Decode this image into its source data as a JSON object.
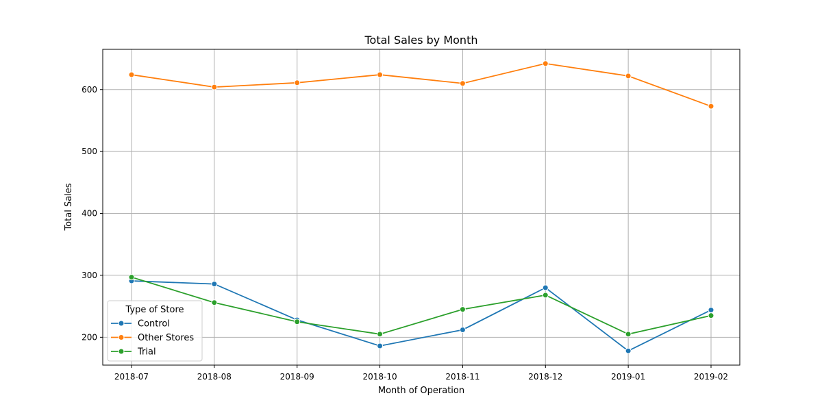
{
  "chart_data": {
    "type": "line",
    "title": "Total Sales by Month",
    "xlabel": "Month of Operation",
    "ylabel": "Total Sales",
    "categories": [
      "2018-07",
      "2018-08",
      "2018-09",
      "2018-10",
      "2018-11",
      "2018-12",
      "2019-01",
      "2019-02"
    ],
    "ylim": [
      155,
      665
    ],
    "yticks": [
      200,
      300,
      400,
      500,
      600
    ],
    "grid": true,
    "legend": {
      "title": "Type of Store",
      "position": "lower-left"
    },
    "series": [
      {
        "name": "Control",
        "color": "#1f77b4",
        "marker": "circle",
        "values": [
          291,
          286,
          228,
          186,
          212,
          280,
          178,
          244
        ]
      },
      {
        "name": "Other Stores",
        "color": "#ff7f0e",
        "marker": "circle",
        "values": [
          624,
          604,
          611,
          624,
          610,
          642,
          622,
          573
        ]
      },
      {
        "name": "Trial",
        "color": "#2ca02c",
        "marker": "circle",
        "values": [
          297,
          256,
          225,
          205,
          245,
          268,
          205,
          235
        ]
      }
    ]
  }
}
